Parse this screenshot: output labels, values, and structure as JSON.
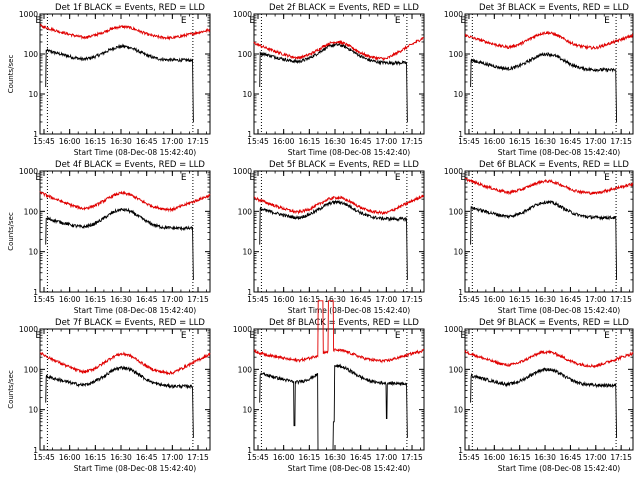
{
  "chart_data": [
    {
      "type": "line",
      "detector": "1f",
      "title": "Det 1f BLACK = Events, RED = LLD",
      "xlabel": "Start Time (08-Dec-08 15:42:40)",
      "ylabel": "Counts/sec",
      "yscale": "log",
      "ylim": [
        1,
        1000
      ],
      "xlim": [
        "15:42:40",
        "17:22:00"
      ],
      "x_ticks": [
        "15:45",
        "16:00",
        "16:15",
        "16:30",
        "16:45",
        "17:00",
        "17:15"
      ],
      "y_ticks": [
        "1",
        "10",
        "100",
        "1000"
      ],
      "markers": [
        "E",
        "E"
      ],
      "marker_times": [
        "15:47",
        "17:12"
      ],
      "series": [
        {
          "name": "BLACK = Events",
          "color": "#000000",
          "mode": "events",
          "valley": 70,
          "peak": 155,
          "spike": null
        },
        {
          "name": "RED = LLD",
          "color": "#e00000",
          "mode": "lld",
          "valley": 250,
          "peak": 480,
          "start": 520,
          "end": 400,
          "spike": null
        }
      ]
    },
    {
      "type": "line",
      "detector": "2f",
      "title": "Det 2f BLACK = Events, RED = LLD",
      "xlabel": "Start Time (08-Dec-08 15:42:40)",
      "ylabel": "",
      "yscale": "log",
      "ylim": [
        1,
        1000
      ],
      "xlim": [
        "15:42:40",
        "17:22:00"
      ],
      "x_ticks": [
        "15:45",
        "16:00",
        "16:15",
        "16:30",
        "16:45",
        "17:00",
        "17:15"
      ],
      "y_ticks": [
        "1",
        "10",
        "100",
        "1000"
      ],
      "markers": [
        "E",
        "E"
      ],
      "marker_times": [
        "15:47",
        "17:12"
      ],
      "series": [
        {
          "name": "BLACK = Events",
          "color": "#000000",
          "mode": "events",
          "valley": 60,
          "peak": 170,
          "spike": null
        },
        {
          "name": "RED = LLD",
          "color": "#e00000",
          "mode": "lld",
          "valley": 75,
          "peak": 200,
          "start": 190,
          "end": 260,
          "spike": null
        }
      ]
    },
    {
      "type": "line",
      "detector": "3f",
      "title": "Det 3f BLACK = Events, RED = LLD",
      "xlabel": "Start Time (08-Dec-08 15:42:40)",
      "ylabel": "",
      "yscale": "log",
      "ylim": [
        1,
        1000
      ],
      "xlim": [
        "15:42:40",
        "17:22:00"
      ],
      "x_ticks": [
        "15:45",
        "16:00",
        "16:15",
        "16:30",
        "16:45",
        "17:00",
        "17:15"
      ],
      "y_ticks": [
        "1",
        "10",
        "100",
        "1000"
      ],
      "markers": [
        "E",
        "E"
      ],
      "marker_times": [
        "15:47",
        "17:12"
      ],
      "series": [
        {
          "name": "BLACK = Events",
          "color": "#000000",
          "mode": "events",
          "valley": 40,
          "peak": 100,
          "spike": null
        },
        {
          "name": "RED = LLD",
          "color": "#e00000",
          "mode": "lld",
          "valley": 140,
          "peak": 340,
          "start": 300,
          "end": 290,
          "spike": null
        }
      ]
    },
    {
      "type": "line",
      "detector": "4f",
      "title": "Det 4f BLACK = Events, RED = LLD",
      "xlabel": "Start Time (08-Dec-08 15:42:40)",
      "ylabel": "Counts/sec",
      "yscale": "log",
      "ylim": [
        1,
        1000
      ],
      "xlim": [
        "15:42:40",
        "17:22:00"
      ],
      "x_ticks": [
        "15:45",
        "16:00",
        "16:15",
        "16:30",
        "16:45",
        "17:00",
        "17:15"
      ],
      "y_ticks": [
        "1",
        "10",
        "100",
        "1000"
      ],
      "markers": [
        "E",
        "E"
      ],
      "marker_times": [
        "15:47",
        "17:12"
      ],
      "series": [
        {
          "name": "BLACK = Events",
          "color": "#000000",
          "mode": "events",
          "valley": 38,
          "peak": 110,
          "spike": null
        },
        {
          "name": "RED = LLD",
          "color": "#e00000",
          "mode": "lld",
          "valley": 110,
          "peak": 280,
          "start": 300,
          "end": 250,
          "spike": null
        }
      ]
    },
    {
      "type": "line",
      "detector": "5f",
      "title": "Det 5f BLACK = Events, RED = LLD",
      "xlabel": "Start Time (08-Dec-08 15:42:40)",
      "ylabel": "",
      "yscale": "log",
      "ylim": [
        1,
        1000
      ],
      "xlim": [
        "15:42:40",
        "17:22:00"
      ],
      "x_ticks": [
        "15:45",
        "16:00",
        "16:15",
        "16:30",
        "16:45",
        "17:00",
        "17:15"
      ],
      "y_ticks": [
        "1",
        "10",
        "100",
        "1000"
      ],
      "markers": [
        "E",
        "E"
      ],
      "marker_times": [
        "15:47",
        "17:12"
      ],
      "series": [
        {
          "name": "BLACK = Events",
          "color": "#000000",
          "mode": "events",
          "valley": 65,
          "peak": 170,
          "spike": null
        },
        {
          "name": "RED = LLD",
          "color": "#e00000",
          "mode": "lld",
          "valley": 90,
          "peak": 220,
          "start": 220,
          "end": 250,
          "spike": null
        }
      ]
    },
    {
      "type": "line",
      "detector": "6f",
      "title": "Det 6f BLACK = Events, RED = LLD",
      "xlabel": "Start Time (08-Dec-08 15:42:40)",
      "ylabel": "",
      "yscale": "log",
      "ylim": [
        1,
        1000
      ],
      "xlim": [
        "15:42:40",
        "17:22:00"
      ],
      "x_ticks": [
        "15:45",
        "16:00",
        "16:15",
        "16:30",
        "16:45",
        "17:00",
        "17:15"
      ],
      "y_ticks": [
        "1",
        "10",
        "100",
        "1000"
      ],
      "markers": [
        "E",
        "E"
      ],
      "marker_times": [
        "15:47",
        "17:12"
      ],
      "series": [
        {
          "name": "BLACK = Events",
          "color": "#000000",
          "mode": "events",
          "valley": 70,
          "peak": 170,
          "spike": null
        },
        {
          "name": "RED = LLD",
          "color": "#e00000",
          "mode": "lld",
          "valley": 280,
          "peak": 560,
          "start": 650,
          "end": 480,
          "spike": null
        }
      ]
    },
    {
      "type": "line",
      "detector": "7f",
      "title": "Det 7f BLACK = Events, RED = LLD",
      "xlabel": "Start Time (08-Dec-08 15:42:40)",
      "ylabel": "Counts/sec",
      "yscale": "log",
      "ylim": [
        1,
        1000
      ],
      "xlim": [
        "15:42:40",
        "17:22:00"
      ],
      "x_ticks": [
        "15:45",
        "16:00",
        "16:15",
        "16:30",
        "16:45",
        "17:00",
        "17:15"
      ],
      "y_ticks": [
        "1",
        "10",
        "100",
        "1000"
      ],
      "markers": [
        "E",
        "E"
      ],
      "marker_times": [
        "15:47",
        "17:12"
      ],
      "series": [
        {
          "name": "BLACK = Events",
          "color": "#000000",
          "mode": "events",
          "valley": 38,
          "peak": 110,
          "spike": null
        },
        {
          "name": "RED = LLD",
          "color": "#e00000",
          "mode": "lld",
          "valley": 80,
          "peak": 240,
          "start": 260,
          "end": 240,
          "spike": null
        }
      ]
    },
    {
      "type": "line",
      "detector": "8f",
      "title": "Det 8f BLACK = Events, RED = LLD",
      "xlabel": "Start Time (08-Dec-08 15:42:40)",
      "ylabel": "",
      "yscale": "log",
      "ylim": [
        1,
        1000
      ],
      "xlim": [
        "15:42:40",
        "17:22:00"
      ],
      "x_ticks": [
        "15:45",
        "16:00",
        "16:15",
        "16:30",
        "16:45",
        "17:00",
        "17:15"
      ],
      "y_ticks": [
        "1",
        "10",
        "100",
        "1000"
      ],
      "markers": [
        "E",
        "E"
      ],
      "marker_times": [
        "15:47",
        "17:12"
      ],
      "series": [
        {
          "name": "BLACK = Events",
          "color": "#000000",
          "mode": "events8",
          "valley": 45,
          "peak": 120,
          "spike": null
        },
        {
          "name": "RED = LLD",
          "color": "#e00000",
          "mode": "lld",
          "valley": 160,
          "peak": 300,
          "start": 280,
          "end": 300,
          "spike": [
            [
              "16:20",
              "16:23"
            ],
            [
              "16:26",
              "16:29"
            ]
          ]
        }
      ]
    },
    {
      "type": "line",
      "detector": "9f",
      "title": "Det 9f BLACK = Events, RED = LLD",
      "xlabel": "Start Time (08-Dec-08 15:42:40)",
      "ylabel": "",
      "yscale": "log",
      "ylim": [
        1,
        1000
      ],
      "xlim": [
        "15:42:40",
        "17:22:00"
      ],
      "x_ticks": [
        "15:45",
        "16:00",
        "16:15",
        "16:30",
        "16:45",
        "17:00",
        "17:15"
      ],
      "y_ticks": [
        "1",
        "10",
        "100",
        "1000"
      ],
      "markers": [
        "E",
        "E"
      ],
      "marker_times": [
        "15:47",
        "17:12"
      ],
      "series": [
        {
          "name": "BLACK = Events",
          "color": "#000000",
          "mode": "events",
          "valley": 40,
          "peak": 100,
          "spike": null
        },
        {
          "name": "RED = LLD",
          "color": "#e00000",
          "mode": "lld",
          "valley": 120,
          "peak": 270,
          "start": 280,
          "end": 250,
          "spike": null
        }
      ]
    }
  ]
}
